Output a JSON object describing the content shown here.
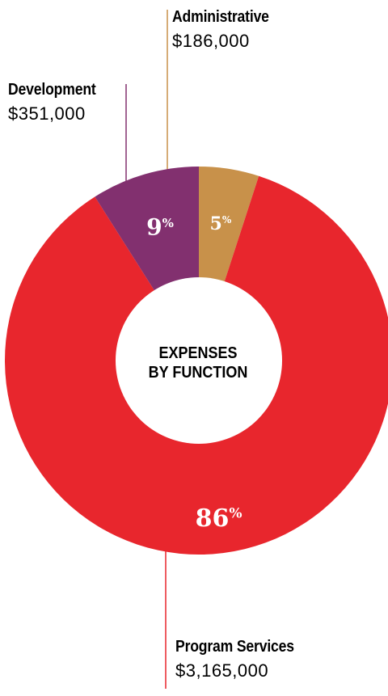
{
  "chart_data": {
    "type": "pie",
    "style": "donut",
    "title_lines": [
      "EXPENSES",
      "BY FUNCTION"
    ],
    "slices": [
      {
        "name": "Administrative",
        "amount": "$186,000",
        "percent": 5,
        "percent_label": "5",
        "color": "#C8914A"
      },
      {
        "name": "Program Services",
        "amount": "$3,165,000",
        "percent": 86,
        "percent_label": "86",
        "color": "#E8262D"
      },
      {
        "name": "Development",
        "amount": "$351,000",
        "percent": 9,
        "percent_label": "9",
        "color": "#82306F"
      }
    ],
    "percent_suffix": "%",
    "leader_line_colors": {
      "administrative": "#C8914A",
      "development": "#82306F",
      "program": "#E8262D"
    }
  }
}
